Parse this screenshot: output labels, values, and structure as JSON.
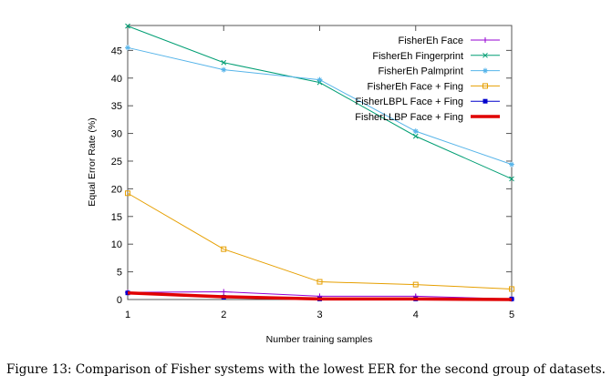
{
  "chart_data": {
    "type": "line",
    "title": "",
    "xlabel": "Number training samples",
    "ylabel": "Equal Error Rate (%)",
    "x": [
      1,
      2,
      3,
      4,
      5
    ],
    "xlim": [
      1,
      5
    ],
    "ylim": [
      0,
      49.5
    ],
    "xticks": [
      1,
      2,
      3,
      4,
      5
    ],
    "yticks": [
      0,
      5,
      10,
      15,
      20,
      25,
      30,
      35,
      40,
      45
    ],
    "grid": false,
    "legend_position": "top-right",
    "series": [
      {
        "name": "FisherEh Face",
        "color": "#9400d3",
        "marker": "plus",
        "width": 1,
        "values": [
          1.3,
          1.4,
          0.6,
          0.6,
          0.1
        ]
      },
      {
        "name": "FisherEh Fingerprint",
        "color": "#009e73",
        "marker": "cross",
        "width": 1,
        "values": [
          49.4,
          42.8,
          39.2,
          29.5,
          21.8
        ]
      },
      {
        "name": "FisherEh Palmprint",
        "color": "#56b4e9",
        "marker": "star",
        "width": 1,
        "values": [
          45.5,
          41.5,
          39.7,
          30.4,
          24.4
        ]
      },
      {
        "name": "FisherEh Face + Fing",
        "color": "#e69f00",
        "marker": "box",
        "width": 1,
        "values": [
          19.2,
          9.1,
          3.2,
          2.7,
          1.9
        ]
      },
      {
        "name": "FisherLBPL Face + Fing",
        "color": "#0000cc",
        "marker": "filled-box",
        "width": 1,
        "values": [
          1.2,
          0.4,
          0.1,
          0.1,
          0.1
        ]
      },
      {
        "name": "FisherLLBP Face + Fing",
        "color": "#e00000",
        "marker": "none",
        "width": 3.5,
        "values": [
          1.2,
          0.5,
          0.1,
          0.1,
          0.0
        ]
      }
    ]
  },
  "caption": "Figure 13: Comparison of Fisher systems with the lowest EER for the second group of datasets."
}
